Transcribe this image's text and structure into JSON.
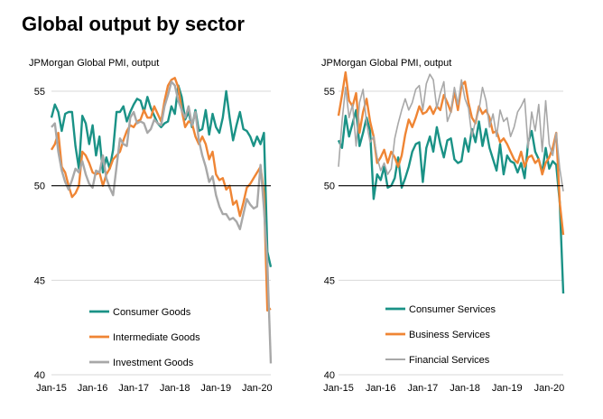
{
  "title": "Global output by sector",
  "chart_data": [
    {
      "type": "line",
      "subtitle": "JPMorgan Global PMI, output",
      "ylim": [
        40,
        56
      ],
      "yticks": [
        40,
        45,
        50,
        55
      ],
      "reference_line": 50,
      "grid": true,
      "x_ticks": [
        "Jan-15",
        "Jan-16",
        "Jan-17",
        "Jan-18",
        "Jan-19",
        "Jan-20"
      ],
      "x_range": [
        0,
        64
      ],
      "legend_placement": "bottom-center",
      "series": [
        {
          "name": "Consumer Goods",
          "color": "#1a9286",
          "width": 2.4,
          "values": [
            53.6,
            54.3,
            53.9,
            52.9,
            53.8,
            53.9,
            53.9,
            52.1,
            50.9,
            53.7,
            53.3,
            52.2,
            53.2,
            51.6,
            52.6,
            50.7,
            51.5,
            50.9,
            51.9,
            53.9,
            53.9,
            54.2,
            53.4,
            53.9,
            54.3,
            54.6,
            54.5,
            53.9,
            54.7,
            54.1,
            53.7,
            53.3,
            53.1,
            53.3,
            53.4,
            54.2,
            53.8,
            55.3,
            54.7,
            53.5,
            53.9,
            53.1,
            54.0,
            52.9,
            53.0,
            54.0,
            52.7,
            53.8,
            53.1,
            52.8,
            53.6,
            55.0,
            53.6,
            52.4,
            53.2,
            53.9,
            53.0,
            52.9,
            52.6,
            52.1,
            52.6,
            52.2,
            52.8,
            46.5,
            45.7
          ]
        },
        {
          "name": "Intermediate Goods",
          "color": "#ef8534",
          "width": 2.4,
          "values": [
            51.9,
            52.2,
            52.8,
            51.0,
            50.7,
            50.0,
            49.4,
            49.6,
            50.0,
            51.8,
            51.6,
            51.2,
            50.7,
            50.6,
            50.7,
            50.0,
            50.6,
            50.9,
            51.4,
            51.6,
            51.8,
            52.4,
            52.9,
            53.2,
            53.1,
            53.4,
            53.5,
            54.0,
            53.6,
            53.6,
            54.2,
            53.8,
            53.4,
            54.5,
            55.3,
            55.6,
            55.7,
            55.2,
            54.0,
            53.1,
            53.4,
            53.3,
            52.6,
            52.2,
            52.6,
            52.2,
            51.4,
            51.8,
            50.6,
            50.3,
            50.4,
            49.8,
            50.0,
            49.0,
            49.2,
            48.4,
            49.1,
            49.9,
            50.1,
            50.4,
            50.7,
            51.0,
            49.6,
            43.4,
            43.5
          ]
        },
        {
          "name": "Investment Goods",
          "color": "#a8a8a8",
          "width": 2.4,
          "values": [
            53.1,
            53.3,
            51.8,
            50.8,
            50.2,
            49.8,
            50.3,
            50.9,
            50.7,
            51.3,
            50.6,
            50.1,
            49.9,
            50.8,
            50.7,
            51.6,
            50.4,
            49.9,
            49.5,
            51.0,
            52.5,
            52.2,
            52.1,
            53.6,
            53.9,
            53.3,
            53.4,
            53.3,
            52.8,
            53.0,
            53.5,
            53.3,
            53.2,
            54.2,
            54.8,
            55.5,
            55.3,
            54.5,
            54.0,
            53.6,
            54.2,
            53.2,
            53.9,
            52.4,
            51.6,
            51.0,
            50.2,
            50.5,
            49.5,
            48.9,
            48.5,
            48.5,
            48.2,
            48.3,
            48.1,
            47.7,
            48.5,
            49.3,
            49.0,
            48.8,
            48.9,
            51.1,
            48.8,
            45.9,
            40.6
          ]
        }
      ]
    },
    {
      "type": "line",
      "subtitle": "JPMorgan Global PMI, output",
      "ylim": [
        40,
        56
      ],
      "yticks": [
        40,
        45,
        50,
        55
      ],
      "reference_line": 50,
      "grid": true,
      "x_ticks": [
        "Jan-15",
        "Jan-16",
        "Jan-17",
        "Jan-18",
        "Jan-19",
        "Jan-20"
      ],
      "x_range": [
        0,
        64
      ],
      "legend_placement": "bottom-center",
      "series": [
        {
          "name": "Consumer Services",
          "color": "#1a9286",
          "width": 2.4,
          "values": [
            52.4,
            52.0,
            53.7,
            52.6,
            53.3,
            54.0,
            52.1,
            52.8,
            53.6,
            52.9,
            49.3,
            50.6,
            50.3,
            51.0,
            49.9,
            50.0,
            50.4,
            51.5,
            49.9,
            50.4,
            51.0,
            51.8,
            52.2,
            52.3,
            50.2,
            52.0,
            52.6,
            51.8,
            53.1,
            52.2,
            51.5,
            52.4,
            52.5,
            51.4,
            51.2,
            51.3,
            52.5,
            51.8,
            53.0,
            52.3,
            53.4,
            52.1,
            53.0,
            52.0,
            51.4,
            50.8,
            52.2,
            50.6,
            51.6,
            51.3,
            51.2,
            50.7,
            51.2,
            50.4,
            52.3,
            52.9,
            51.8,
            51.4,
            50.7,
            52.0,
            50.9,
            51.3,
            51.1,
            49.1,
            44.3
          ]
        },
        {
          "name": "Business Services",
          "color": "#ef8534",
          "width": 2.4,
          "values": [
            53.7,
            54.8,
            56.0,
            54.5,
            54.2,
            54.9,
            52.8,
            53.9,
            54.6,
            53.4,
            52.6,
            51.2,
            51.5,
            51.9,
            51.2,
            51.8,
            51.5,
            51.0,
            51.6,
            52.7,
            53.5,
            53.1,
            53.6,
            54.2,
            53.8,
            53.9,
            54.2,
            53.8,
            54.2,
            54.0,
            54.8,
            54.4,
            53.9,
            55.0,
            54.0,
            55.3,
            55.5,
            54.4,
            53.6,
            53.3,
            54.2,
            53.8,
            54.0,
            53.6,
            52.8,
            52.9,
            52.3,
            52.5,
            52.2,
            51.8,
            51.4,
            51.2,
            51.8,
            51.0,
            51.5,
            51.6,
            51.2,
            51.4,
            50.6,
            51.2,
            51.5,
            52.0,
            52.8,
            49.1,
            47.4
          ]
        },
        {
          "name": "Financial Services",
          "color": "#a8a8a8",
          "width": 1.6,
          "values": [
            51.0,
            53.4,
            55.2,
            53.6,
            54.3,
            52.1,
            54.4,
            55.1,
            53.3,
            52.3,
            52.6,
            51.5,
            50.8,
            51.2,
            50.6,
            50.9,
            52.5,
            53.3,
            54.0,
            54.6,
            54.0,
            54.4,
            55.1,
            55.3,
            54.0,
            55.4,
            55.9,
            55.6,
            54.1,
            54.9,
            55.5,
            53.4,
            53.9,
            55.2,
            54.3,
            55.6,
            54.6,
            54.1,
            52.6,
            53.4,
            54.0,
            55.2,
            54.5,
            53.1,
            53.8,
            52.6,
            54.0,
            53.4,
            53.6,
            52.6,
            53.1,
            53.9,
            54.2,
            54.6,
            52.0,
            53.9,
            52.9,
            54.3,
            51.8,
            54.5,
            52.2,
            51.6,
            52.8,
            50.9,
            49.7
          ]
        }
      ]
    }
  ]
}
